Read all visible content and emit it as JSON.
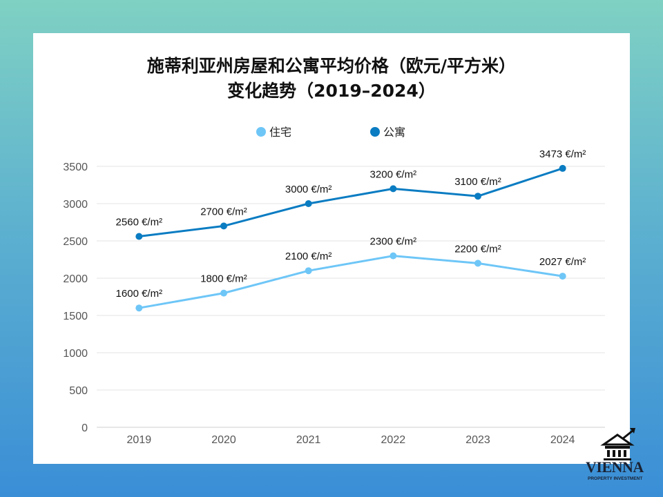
{
  "chart_data": {
    "type": "line",
    "title_line1": "施蒂利亚州房屋和公寓平均价格（欧元/平方米）",
    "title_line2": "变化趋势（2019–2024）",
    "categories": [
      "2019",
      "2020",
      "2021",
      "2022",
      "2023",
      "2024"
    ],
    "ylim": [
      0,
      3500
    ],
    "yticks": [
      0,
      500,
      1000,
      1500,
      2000,
      2500,
      3000,
      3500
    ],
    "grid": true,
    "legend_position": "top",
    "unit_suffix": " €/m²",
    "series": [
      {
        "name": "住宅",
        "color": "#6ec6f7",
        "values": [
          1600,
          1800,
          2100,
          2300,
          2200,
          2027
        ]
      },
      {
        "name": "公寓",
        "color": "#0a7cc2",
        "values": [
          2560,
          2700,
          3000,
          3200,
          3100,
          3473
        ]
      }
    ]
  },
  "logo": {
    "name": "VIENNA",
    "tagline": "PROPERTY INVESTMENT"
  }
}
